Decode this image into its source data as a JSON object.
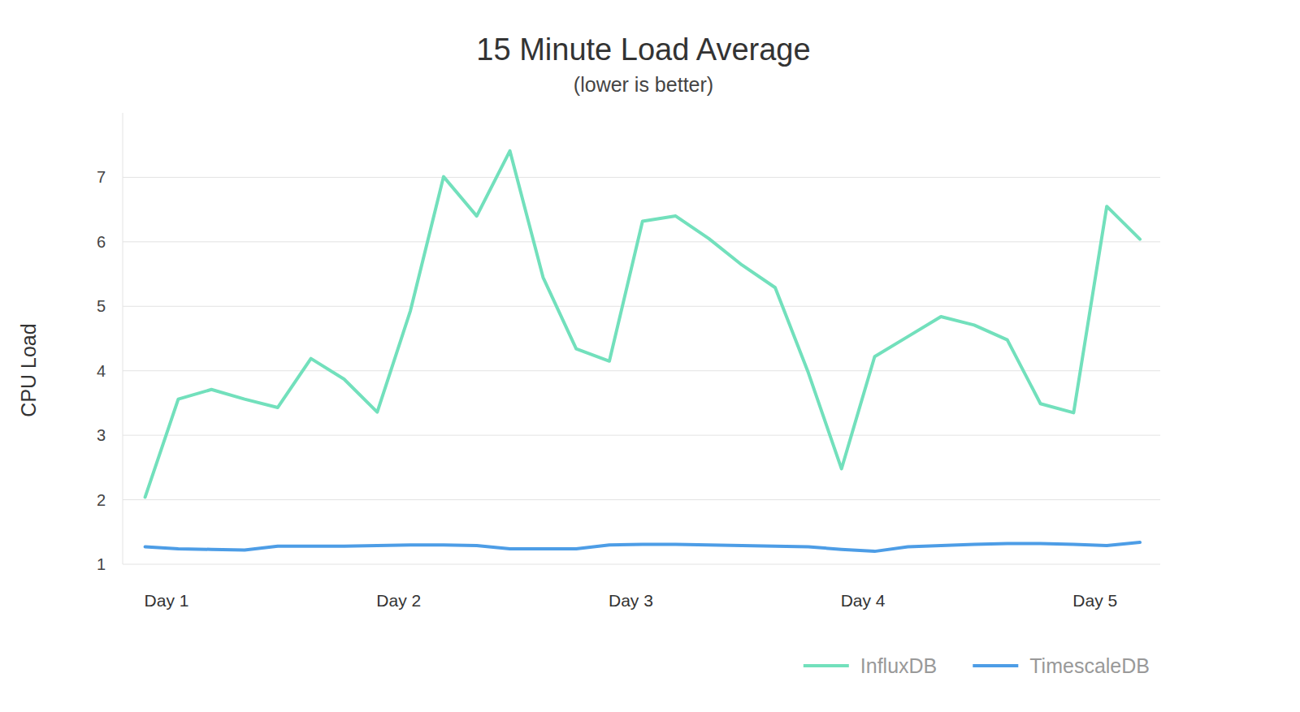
{
  "chart_data": {
    "type": "line",
    "title": "15 Minute Load Average",
    "subtitle": "(lower is better)",
    "y_label": "CPU Load",
    "categories": [
      "Day 1",
      null,
      null,
      null,
      null,
      null,
      null,
      "Day 2",
      null,
      null,
      null,
      null,
      null,
      null,
      "Day 3",
      null,
      null,
      null,
      null,
      null,
      null,
      "Day 4",
      null,
      null,
      null,
      null,
      null,
      null,
      "Day 5",
      null,
      null
    ],
    "series": [
      {
        "name": "InfluxDB",
        "color": "#72e0bc",
        "values": [
          2.04,
          3.56,
          3.71,
          3.56,
          3.43,
          4.19,
          3.87,
          3.36,
          4.93,
          7.01,
          6.4,
          7.41,
          5.45,
          4.34,
          4.15,
          6.32,
          6.4,
          6.05,
          5.64,
          5.29,
          3.97,
          2.48,
          4.22,
          4.53,
          4.84,
          4.71,
          4.48,
          3.49,
          3.35,
          6.55,
          6.04
        ]
      },
      {
        "name": "TimescaleDB",
        "color": "#4d9de6",
        "values": [
          1.27,
          1.24,
          1.23,
          1.22,
          1.28,
          1.28,
          1.28,
          1.29,
          1.3,
          1.3,
          1.29,
          1.24,
          1.24,
          1.24,
          1.3,
          1.31,
          1.31,
          1.3,
          1.29,
          1.28,
          1.27,
          1.23,
          1.2,
          1.27,
          1.29,
          1.31,
          1.32,
          1.32,
          1.31,
          1.29,
          1.34
        ]
      }
    ],
    "ylim": [
      1,
      8
    ],
    "yticks": [
      1,
      2,
      3,
      4,
      5,
      6,
      7
    ],
    "grid": true,
    "legend": "bottom-right"
  }
}
